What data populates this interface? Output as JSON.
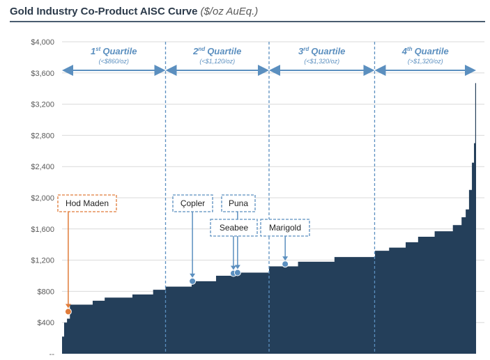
{
  "chart_data": {
    "type": "area",
    "title": "Gold Industry Co-Product AISC Curve",
    "subtitle": "($/oz AuEq.)",
    "xlabel": "",
    "ylabel": "",
    "xlim": [
      0,
      100
    ],
    "ylim": [
      0,
      4000
    ],
    "yticks": [
      0,
      400,
      800,
      1200,
      1600,
      2000,
      2400,
      2800,
      3200,
      3600,
      4000
    ],
    "ytick_labels": [
      "--",
      "$400",
      "$800",
      "$1,200",
      "$1,600",
      "$2,000",
      "$2,400",
      "$2,800",
      "$3,200",
      "$3,600",
      "$4,000"
    ],
    "grid": true,
    "curve": {
      "x": [
        0,
        0.5,
        1.2,
        1.9,
        7.4,
        10.3,
        17,
        22,
        25,
        31.3,
        37.2,
        42.3,
        50,
        57,
        65.8,
        75.6,
        79,
        83,
        86,
        90,
        94.4,
        96.5,
        97.5,
        98.3,
        99,
        99.5,
        99.8,
        100
      ],
      "y": [
        220,
        400,
        450,
        630,
        680,
        720,
        760,
        820,
        860,
        930,
        1000,
        1040,
        1120,
        1180,
        1240,
        1320,
        1360,
        1430,
        1500,
        1570,
        1650,
        1750,
        1850,
        2100,
        2450,
        2700,
        3470,
        3470
      ],
      "color": "#243f5a"
    },
    "quartiles": [
      {
        "label": "1",
        "sup": "st",
        "word": "Quartile",
        "range": "(<$860/oz)",
        "x0": 0,
        "x1": 25
      },
      {
        "label": "2",
        "sup": "nd",
        "word": "Quartile",
        "range": "(<$1,120/oz)",
        "x0": 25,
        "x1": 50
      },
      {
        "label": "3",
        "sup": "rd",
        "word": "Quartile",
        "range": "(<$1,320/oz)",
        "x0": 50,
        "x1": 75.5
      },
      {
        "label": "4",
        "sup": "th",
        "word": "Quartile",
        "range": "(>$1,320/oz)",
        "x0": 75.5,
        "x1": 100
      }
    ],
    "annotations": [
      {
        "label": "Hod Maden",
        "x": 1.5,
        "y": 540,
        "color": "#e07b39"
      },
      {
        "label": "Çopler",
        "x": 31.5,
        "y": 930,
        "color": "#5b8fbf"
      },
      {
        "label": "Seabee",
        "x": 41.4,
        "y": 1030,
        "color": "#5b8fbf"
      },
      {
        "label": "Puna",
        "x": 42.4,
        "y": 1040,
        "color": "#5b8fbf"
      },
      {
        "label": "Marigold",
        "x": 53.9,
        "y": 1150,
        "color": "#5b8fbf"
      }
    ],
    "colors": {
      "title": "#2b3a4a",
      "accent": "#5b8fbf",
      "highlight": "#e07b39",
      "grid": "#d9d9d9",
      "axis_text": "#595959"
    }
  }
}
